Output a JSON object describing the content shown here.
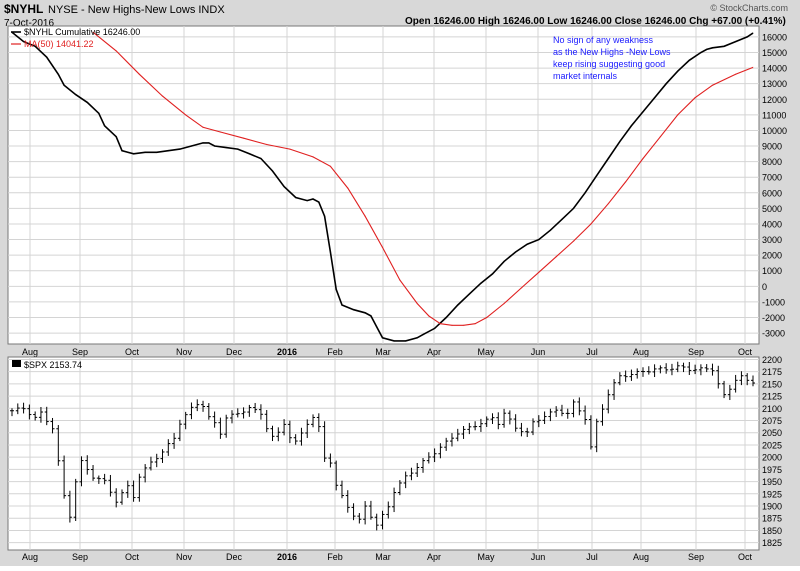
{
  "header": {
    "symbol": "$NYHL",
    "description": "NYSE - New Highs-New Lows INDX",
    "date": "7-Oct-2016",
    "ohlc": "Open 16246.00  High 16246.00  Low 16246.00  Close 16246.00  Chg +67.00 (+0.41%)",
    "watermark": "© StockCharts.com"
  },
  "annotation": [
    "No sign of any weakness",
    "as the New Highs -New Lows",
    "keep rising suggesting good",
    "market internals"
  ],
  "colors": {
    "nyhl_line": "#000000",
    "ma_line": "#e02020",
    "annotation_text": "#1a1aff",
    "panel_bg": "#ffffff",
    "frame_bg": "#d8d8d8",
    "grid": "#d4d4d4"
  },
  "month_labels": [
    "Aug",
    "Sep",
    "Oct",
    "Nov",
    "Dec",
    "2016",
    "Feb",
    "Mar",
    "Apr",
    "May",
    "Jun",
    "Jul",
    "Aug",
    "Sep",
    "Oct"
  ],
  "chart_data": [
    {
      "type": "line",
      "legend_placement": "top-left",
      "grid": true,
      "ylim": [
        -3700,
        16700
      ],
      "y_ticks": [
        "16000",
        "15000",
        "14000",
        "13000",
        "12000",
        "11000",
        "10000",
        "9000",
        "8000",
        "7000",
        "6000",
        "5000",
        "4000",
        "3000",
        "2000",
        "1000",
        "0",
        "-1000",
        "-2000",
        "-3000"
      ],
      "series": [
        {
          "name": "$NYHL Cumulative 16246.00",
          "points": [
            [
              0,
              16300
            ],
            [
              2,
              15700
            ],
            [
              4,
              15400
            ],
            [
              6,
              14700
            ],
            [
              8,
              13600
            ],
            [
              9,
              12900
            ],
            [
              11,
              12300
            ],
            [
              13,
              11800
            ],
            [
              15,
              11100
            ],
            [
              16,
              10300
            ],
            [
              18,
              9600
            ],
            [
              19,
              8700
            ],
            [
              21,
              8500
            ],
            [
              23,
              8600
            ],
            [
              25,
              8600
            ],
            [
              27,
              8700
            ],
            [
              29,
              8800
            ],
            [
              31,
              9000
            ],
            [
              33,
              9200
            ],
            [
              34,
              9200
            ],
            [
              35,
              9000
            ],
            [
              37,
              8900
            ],
            [
              39,
              8800
            ],
            [
              41,
              8500
            ],
            [
              43,
              8200
            ],
            [
              45,
              7400
            ],
            [
              47,
              6400
            ],
            [
              49,
              5700
            ],
            [
              51,
              5500
            ],
            [
              52,
              5600
            ],
            [
              53,
              5400
            ],
            [
              54,
              4500
            ],
            [
              55,
              2200
            ],
            [
              56,
              -200
            ],
            [
              57,
              -1200
            ],
            [
              59,
              -1500
            ],
            [
              61,
              -1700
            ],
            [
              62,
              -1900
            ],
            [
              63,
              -2600
            ],
            [
              64,
              -3300
            ],
            [
              66,
              -3500
            ],
            [
              68,
              -3500
            ],
            [
              70,
              -3300
            ],
            [
              71,
              -3100
            ],
            [
              73,
              -2700
            ],
            [
              75,
              -2000
            ],
            [
              77,
              -1200
            ],
            [
              79,
              -500
            ],
            [
              81,
              200
            ],
            [
              83,
              800
            ],
            [
              85,
              1600
            ],
            [
              87,
              2200
            ],
            [
              89,
              2700
            ],
            [
              91,
              3000
            ],
            [
              93,
              3600
            ],
            [
              95,
              4300
            ],
            [
              97,
              5000
            ],
            [
              99,
              6000
            ],
            [
              101,
              7100
            ],
            [
              103,
              8200
            ],
            [
              105,
              9300
            ],
            [
              107,
              10300
            ],
            [
              109,
              11200
            ],
            [
              111,
              12100
            ],
            [
              113,
              13000
            ],
            [
              115,
              13800
            ],
            [
              117,
              14500
            ],
            [
              119,
              15000
            ],
            [
              120,
              15200
            ],
            [
              121,
              15300
            ],
            [
              123,
              15400
            ],
            [
              125,
              15700
            ],
            [
              127,
              16000
            ],
            [
              128,
              16246
            ]
          ]
        },
        {
          "name": "MA(50) 14041.22",
          "points": [
            [
              14,
              16300
            ],
            [
              18,
              15100
            ],
            [
              22,
              13600
            ],
            [
              26,
              12200
            ],
            [
              30,
              11000
            ],
            [
              33,
              10200
            ],
            [
              36,
              9900
            ],
            [
              40,
              9500
            ],
            [
              44,
              9100
            ],
            [
              48,
              8800
            ],
            [
              52,
              8300
            ],
            [
              55,
              7700
            ],
            [
              58,
              6300
            ],
            [
              61,
              4500
            ],
            [
              64,
              2500
            ],
            [
              67,
              400
            ],
            [
              70,
              -1100
            ],
            [
              72,
              -1900
            ],
            [
              74,
              -2400
            ],
            [
              76,
              -2500
            ],
            [
              78,
              -2500
            ],
            [
              80,
              -2400
            ],
            [
              82,
              -2000
            ],
            [
              85,
              -1100
            ],
            [
              88,
              -100
            ],
            [
              91,
              900
            ],
            [
              94,
              1900
            ],
            [
              97,
              2900
            ],
            [
              100,
              4000
            ],
            [
              103,
              5300
            ],
            [
              106,
              6700
            ],
            [
              109,
              8200
            ],
            [
              112,
              9600
            ],
            [
              115,
              11000
            ],
            [
              118,
              12100
            ],
            [
              121,
              12900
            ],
            [
              125,
              13600
            ],
            [
              128,
              14041
            ]
          ]
        }
      ]
    },
    {
      "type": "bar",
      "subtype": "ohlc",
      "grid": true,
      "ylim": [
        1810,
        2205
      ],
      "y_ticks": [
        "2200",
        "2175",
        "2150",
        "2125",
        "2100",
        "2075",
        "2050",
        "2025",
        "2000",
        "1975",
        "1950",
        "1925",
        "1900",
        "1875",
        "1850",
        "1825"
      ],
      "series": [
        {
          "name": "$SPX 2153.74",
          "points": [
            [
              0,
              2095
            ],
            [
              2,
              2100
            ],
            [
              4,
              2080
            ],
            [
              5,
              2090
            ],
            [
              7,
              2060
            ],
            [
              8,
              1990
            ],
            [
              9,
              1920
            ],
            [
              10,
              1880
            ],
            [
              11,
              1950
            ],
            [
              12,
              1990
            ],
            [
              14,
              1960
            ],
            [
              16,
              1950
            ],
            [
              18,
              1910
            ],
            [
              20,
              1940
            ],
            [
              21,
              1920
            ],
            [
              22,
              1960
            ],
            [
              24,
              1990
            ],
            [
              26,
              2010
            ],
            [
              28,
              2040
            ],
            [
              29,
              2070
            ],
            [
              31,
              2100
            ],
            [
              32,
              2110
            ],
            [
              33,
              2105
            ],
            [
              34,
              2080
            ],
            [
              35,
              2070
            ],
            [
              36,
              2050
            ],
            [
              37,
              2080
            ],
            [
              39,
              2090
            ],
            [
              41,
              2100
            ],
            [
              43,
              2090
            ],
            [
              44,
              2060
            ],
            [
              45,
              2040
            ],
            [
              46,
              2050
            ],
            [
              47,
              2070
            ],
            [
              48,
              2040
            ],
            [
              49,
              2030
            ],
            [
              50,
              2050
            ],
            [
              51,
              2070
            ],
            [
              52,
              2080
            ],
            [
              53,
              2060
            ],
            [
              54,
              2000
            ],
            [
              55,
              1990
            ],
            [
              56,
              1940
            ],
            [
              57,
              1920
            ],
            [
              58,
              1900
            ],
            [
              59,
              1880
            ],
            [
              60,
              1870
            ],
            [
              61,
              1900
            ],
            [
              62,
              1880
            ],
            [
              63,
              1860
            ],
            [
              64,
              1880
            ],
            [
              65,
              1900
            ],
            [
              66,
              1930
            ],
            [
              68,
              1960
            ],
            [
              70,
              1980
            ],
            [
              72,
              2000
            ],
            [
              74,
              2020
            ],
            [
              76,
              2040
            ],
            [
              77,
              2050
            ],
            [
              79,
              2060
            ],
            [
              81,
              2070
            ],
            [
              83,
              2080
            ],
            [
              84,
              2070
            ],
            [
              85,
              2090
            ],
            [
              87,
              2060
            ],
            [
              89,
              2050
            ],
            [
              90,
              2070
            ],
            [
              92,
              2085
            ],
            [
              93,
              2090
            ],
            [
              94,
              2095
            ],
            [
              96,
              2090
            ],
            [
              97,
              2110
            ],
            [
              98,
              2095
            ],
            [
              99,
              2080
            ],
            [
              100,
              2020
            ],
            [
              101,
              2070
            ],
            [
              102,
              2100
            ],
            [
              103,
              2130
            ],
            [
              104,
              2150
            ],
            [
              105,
              2165
            ],
            [
              107,
              2170
            ],
            [
              109,
              2175
            ],
            [
              111,
              2180
            ],
            [
              113,
              2180
            ],
            [
              115,
              2185
            ],
            [
              117,
              2180
            ],
            [
              119,
              2180
            ],
            [
              121,
              2180
            ],
            [
              122,
              2150
            ],
            [
              123,
              2125
            ],
            [
              124,
              2140
            ],
            [
              125,
              2160
            ],
            [
              126,
              2165
            ],
            [
              127,
              2155
            ],
            [
              128,
              2154
            ]
          ]
        }
      ]
    }
  ]
}
